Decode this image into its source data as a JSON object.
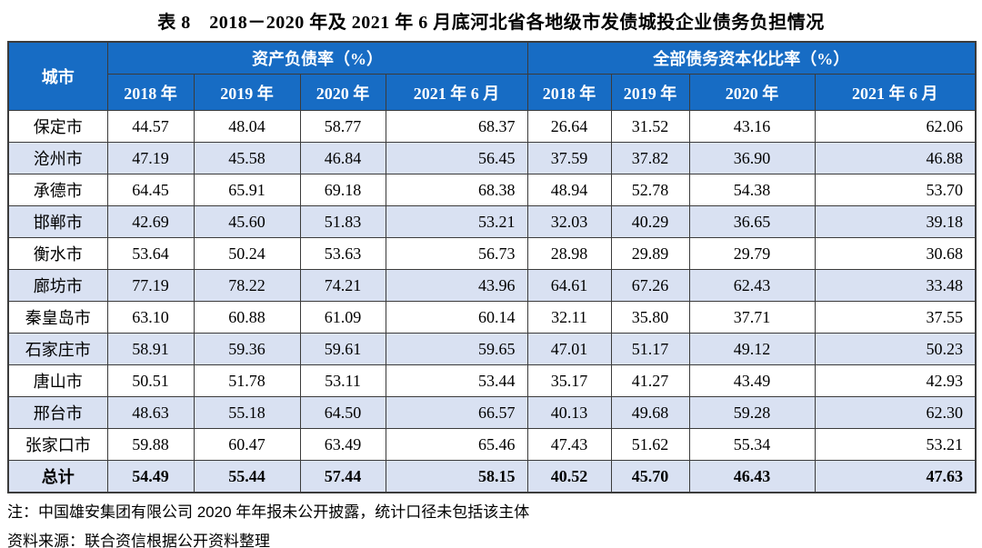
{
  "page": {
    "title": "表 8　2018－2020 年及 2021 年 6 月底河北省各地级市发债城投企业债务负担情况"
  },
  "table": {
    "city_header": "城市",
    "groups": [
      {
        "label": "资产负债率（%）",
        "years": [
          "2018 年",
          "2019 年",
          "2020 年",
          "2021 年 6 月"
        ]
      },
      {
        "label": "全部债务资本化比率（%）",
        "years": [
          "2018 年",
          "2019 年",
          "2020 年",
          "2021 年 6 月"
        ]
      }
    ],
    "rows": [
      {
        "city": "保定市",
        "values": [
          "44.57",
          "48.04",
          "58.77",
          "68.37",
          "26.64",
          "31.52",
          "43.16",
          "62.06"
        ],
        "bold": false,
        "shaded": false
      },
      {
        "city": "沧州市",
        "values": [
          "47.19",
          "45.58",
          "46.84",
          "56.45",
          "37.59",
          "37.82",
          "36.90",
          "46.88"
        ],
        "bold": false,
        "shaded": true
      },
      {
        "city": "承德市",
        "values": [
          "64.45",
          "65.91",
          "69.18",
          "68.38",
          "48.94",
          "52.78",
          "54.38",
          "53.70"
        ],
        "bold": false,
        "shaded": false
      },
      {
        "city": "邯郸市",
        "values": [
          "42.69",
          "45.60",
          "51.83",
          "53.21",
          "32.03",
          "40.29",
          "36.65",
          "39.18"
        ],
        "bold": false,
        "shaded": true
      },
      {
        "city": "衡水市",
        "values": [
          "53.64",
          "50.24",
          "53.63",
          "56.73",
          "28.98",
          "29.89",
          "29.79",
          "30.68"
        ],
        "bold": false,
        "shaded": false
      },
      {
        "city": "廊坊市",
        "values": [
          "77.19",
          "78.22",
          "74.21",
          "43.96",
          "64.61",
          "67.26",
          "62.43",
          "33.48"
        ],
        "bold": false,
        "shaded": true
      },
      {
        "city": "秦皇岛市",
        "values": [
          "63.10",
          "60.88",
          "61.09",
          "60.14",
          "32.11",
          "35.80",
          "37.71",
          "37.55"
        ],
        "bold": false,
        "shaded": false
      },
      {
        "city": "石家庄市",
        "values": [
          "58.91",
          "59.36",
          "59.61",
          "59.65",
          "47.01",
          "51.17",
          "49.12",
          "50.23"
        ],
        "bold": false,
        "shaded": true
      },
      {
        "city": "唐山市",
        "values": [
          "50.51",
          "51.78",
          "53.11",
          "53.44",
          "35.17",
          "41.27",
          "43.49",
          "42.93"
        ],
        "bold": false,
        "shaded": false
      },
      {
        "city": "邢台市",
        "values": [
          "48.63",
          "55.18",
          "64.50",
          "66.57",
          "40.13",
          "49.68",
          "59.28",
          "62.30"
        ],
        "bold": false,
        "shaded": true
      },
      {
        "city": "张家口市",
        "values": [
          "59.88",
          "60.47",
          "63.49",
          "65.46",
          "47.43",
          "51.62",
          "55.34",
          "53.21"
        ],
        "bold": false,
        "shaded": false
      },
      {
        "city": "总计",
        "values": [
          "54.49",
          "55.44",
          "57.44",
          "58.15",
          "40.52",
          "45.70",
          "46.43",
          "47.63"
        ],
        "bold": true,
        "shaded": true
      }
    ]
  },
  "notes": {
    "note1": "注：中国雄安集团有限公司 2020 年年报未公开披露，统计口径未包括该主体",
    "source": "资料来源：联合资信根据公开资料整理"
  },
  "colors": {
    "header_blue": "#176CC4",
    "row_shaded": "#D9E1F2",
    "border": "#3B3B3B"
  }
}
